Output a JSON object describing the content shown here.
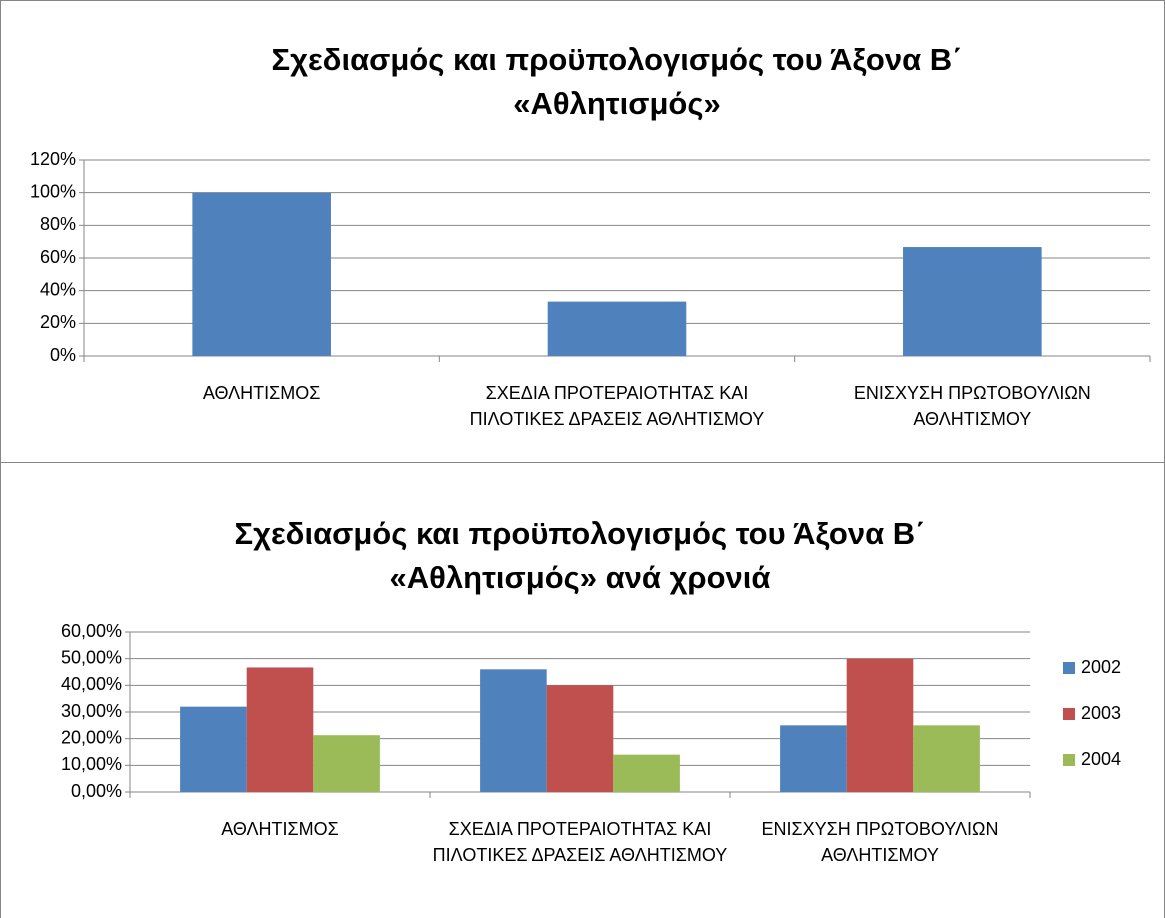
{
  "chart_data": [
    {
      "type": "bar",
      "title": "Σχεδιασμός και προϋπολογισμός του Άξονα Β΄ «Αθλητισμός»",
      "categories": [
        "ΑΘΛΗΤΙΣΜΟΣ",
        "ΣΧΕΔΙΑ ΠΡΟΤΕΡΑΙΟΤΗΤΑΣ ΚΑΙ ΠΙΛΟΤΙΚΕΣ ΔΡΑΣΕΙΣ ΑΘΛΗΤΙΣΜΟΥ",
        "ΕΝΙΣΧΥΣΗ ΠΡΩΤΟΒΟΥΛΙΩΝ ΑΘΛΗΤΙΣΜΟΥ"
      ],
      "values": [
        100,
        33.3,
        66.7
      ],
      "color": "#4f81bd",
      "ylim": [
        0,
        120
      ],
      "yticks": [
        {
          "value": 0,
          "label": "0%"
        },
        {
          "value": 20,
          "label": "20%"
        },
        {
          "value": 40,
          "label": "40%"
        },
        {
          "value": 60,
          "label": "60%"
        },
        {
          "value": 80,
          "label": "80%"
        },
        {
          "value": 100,
          "label": "100%"
        },
        {
          "value": 120,
          "label": "120%"
        }
      ],
      "grid": true
    },
    {
      "type": "grouped_bar",
      "title": "Σχεδιασμός και προϋπολογισμός του Άξονα Β΄ «Αθλητισμός» ανά χρονιά",
      "categories": [
        "ΑΘΛΗΤΙΣΜΟΣ",
        "ΣΧΕΔΙΑ ΠΡΟΤΕΡΑΙΟΤΗΤΑΣ ΚΑΙ ΠΙΛΟΤΙΚΕΣ ΔΡΑΣΕΙΣ ΑΘΛΗΤΙΣΜΟΥ",
        "ΕΝΙΣΧΥΣΗ ΠΡΩΤΟΒΟΥΛΙΩΝ ΑΘΛΗΤΙΣΜΟΥ"
      ],
      "series": [
        {
          "name": "2002",
          "color": "#4f81bd",
          "values": [
            32,
            46,
            25
          ]
        },
        {
          "name": "2003",
          "color": "#c0504d",
          "values": [
            46.7,
            40,
            50
          ]
        },
        {
          "name": "2004",
          "color": "#9bbb59",
          "values": [
            21.3,
            14,
            25
          ]
        }
      ],
      "ylim": [
        0,
        60
      ],
      "yticks": [
        {
          "value": 0,
          "label": "0,00%"
        },
        {
          "value": 10,
          "label": "10,00%"
        },
        {
          "value": 20,
          "label": "20,00%"
        },
        {
          "value": 30,
          "label": "30,00%"
        },
        {
          "value": 40,
          "label": "40,00%"
        },
        {
          "value": 50,
          "label": "50,00%"
        },
        {
          "value": 60,
          "label": "60,00%"
        }
      ],
      "grid": true,
      "legend": "right"
    }
  ]
}
